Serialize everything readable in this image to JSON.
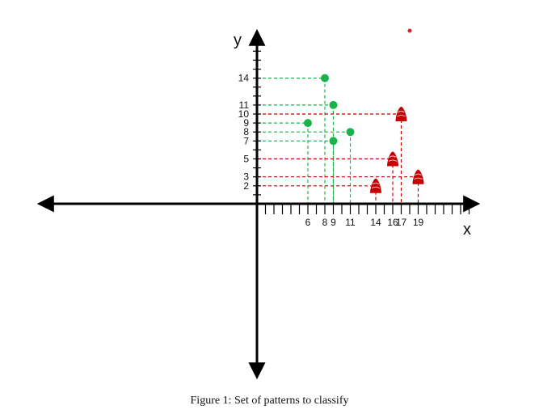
{
  "chart_data": {
    "type": "scatter",
    "xlabel": "x",
    "ylabel": "y",
    "x_tick_labels": [
      "6",
      "8",
      "9",
      "11",
      "14",
      "16",
      "17",
      "19"
    ],
    "y_tick_labels": [
      "2",
      "3",
      "5",
      "7",
      "8",
      "9",
      "10",
      "11",
      "14"
    ],
    "series": [
      {
        "color": "#19b34a",
        "marker": "circle",
        "points": [
          {
            "x": 6,
            "y": 9
          },
          {
            "x": 8,
            "y": 14
          },
          {
            "x": 9,
            "y": 11
          },
          {
            "x": 9,
            "y": 7
          },
          {
            "x": 11,
            "y": 8
          }
        ]
      },
      {
        "color": "#c40000",
        "marker": "cone",
        "points": [
          {
            "x": 14,
            "y": 2
          },
          {
            "x": 16,
            "y": 5
          },
          {
            "x": 17,
            "y": 10
          },
          {
            "x": 19,
            "y": 3
          }
        ]
      }
    ],
    "stray_dot_color": "#e02020",
    "grid": false,
    "legend": "none"
  },
  "caption": "Figure 1: Set of patterns to classify"
}
